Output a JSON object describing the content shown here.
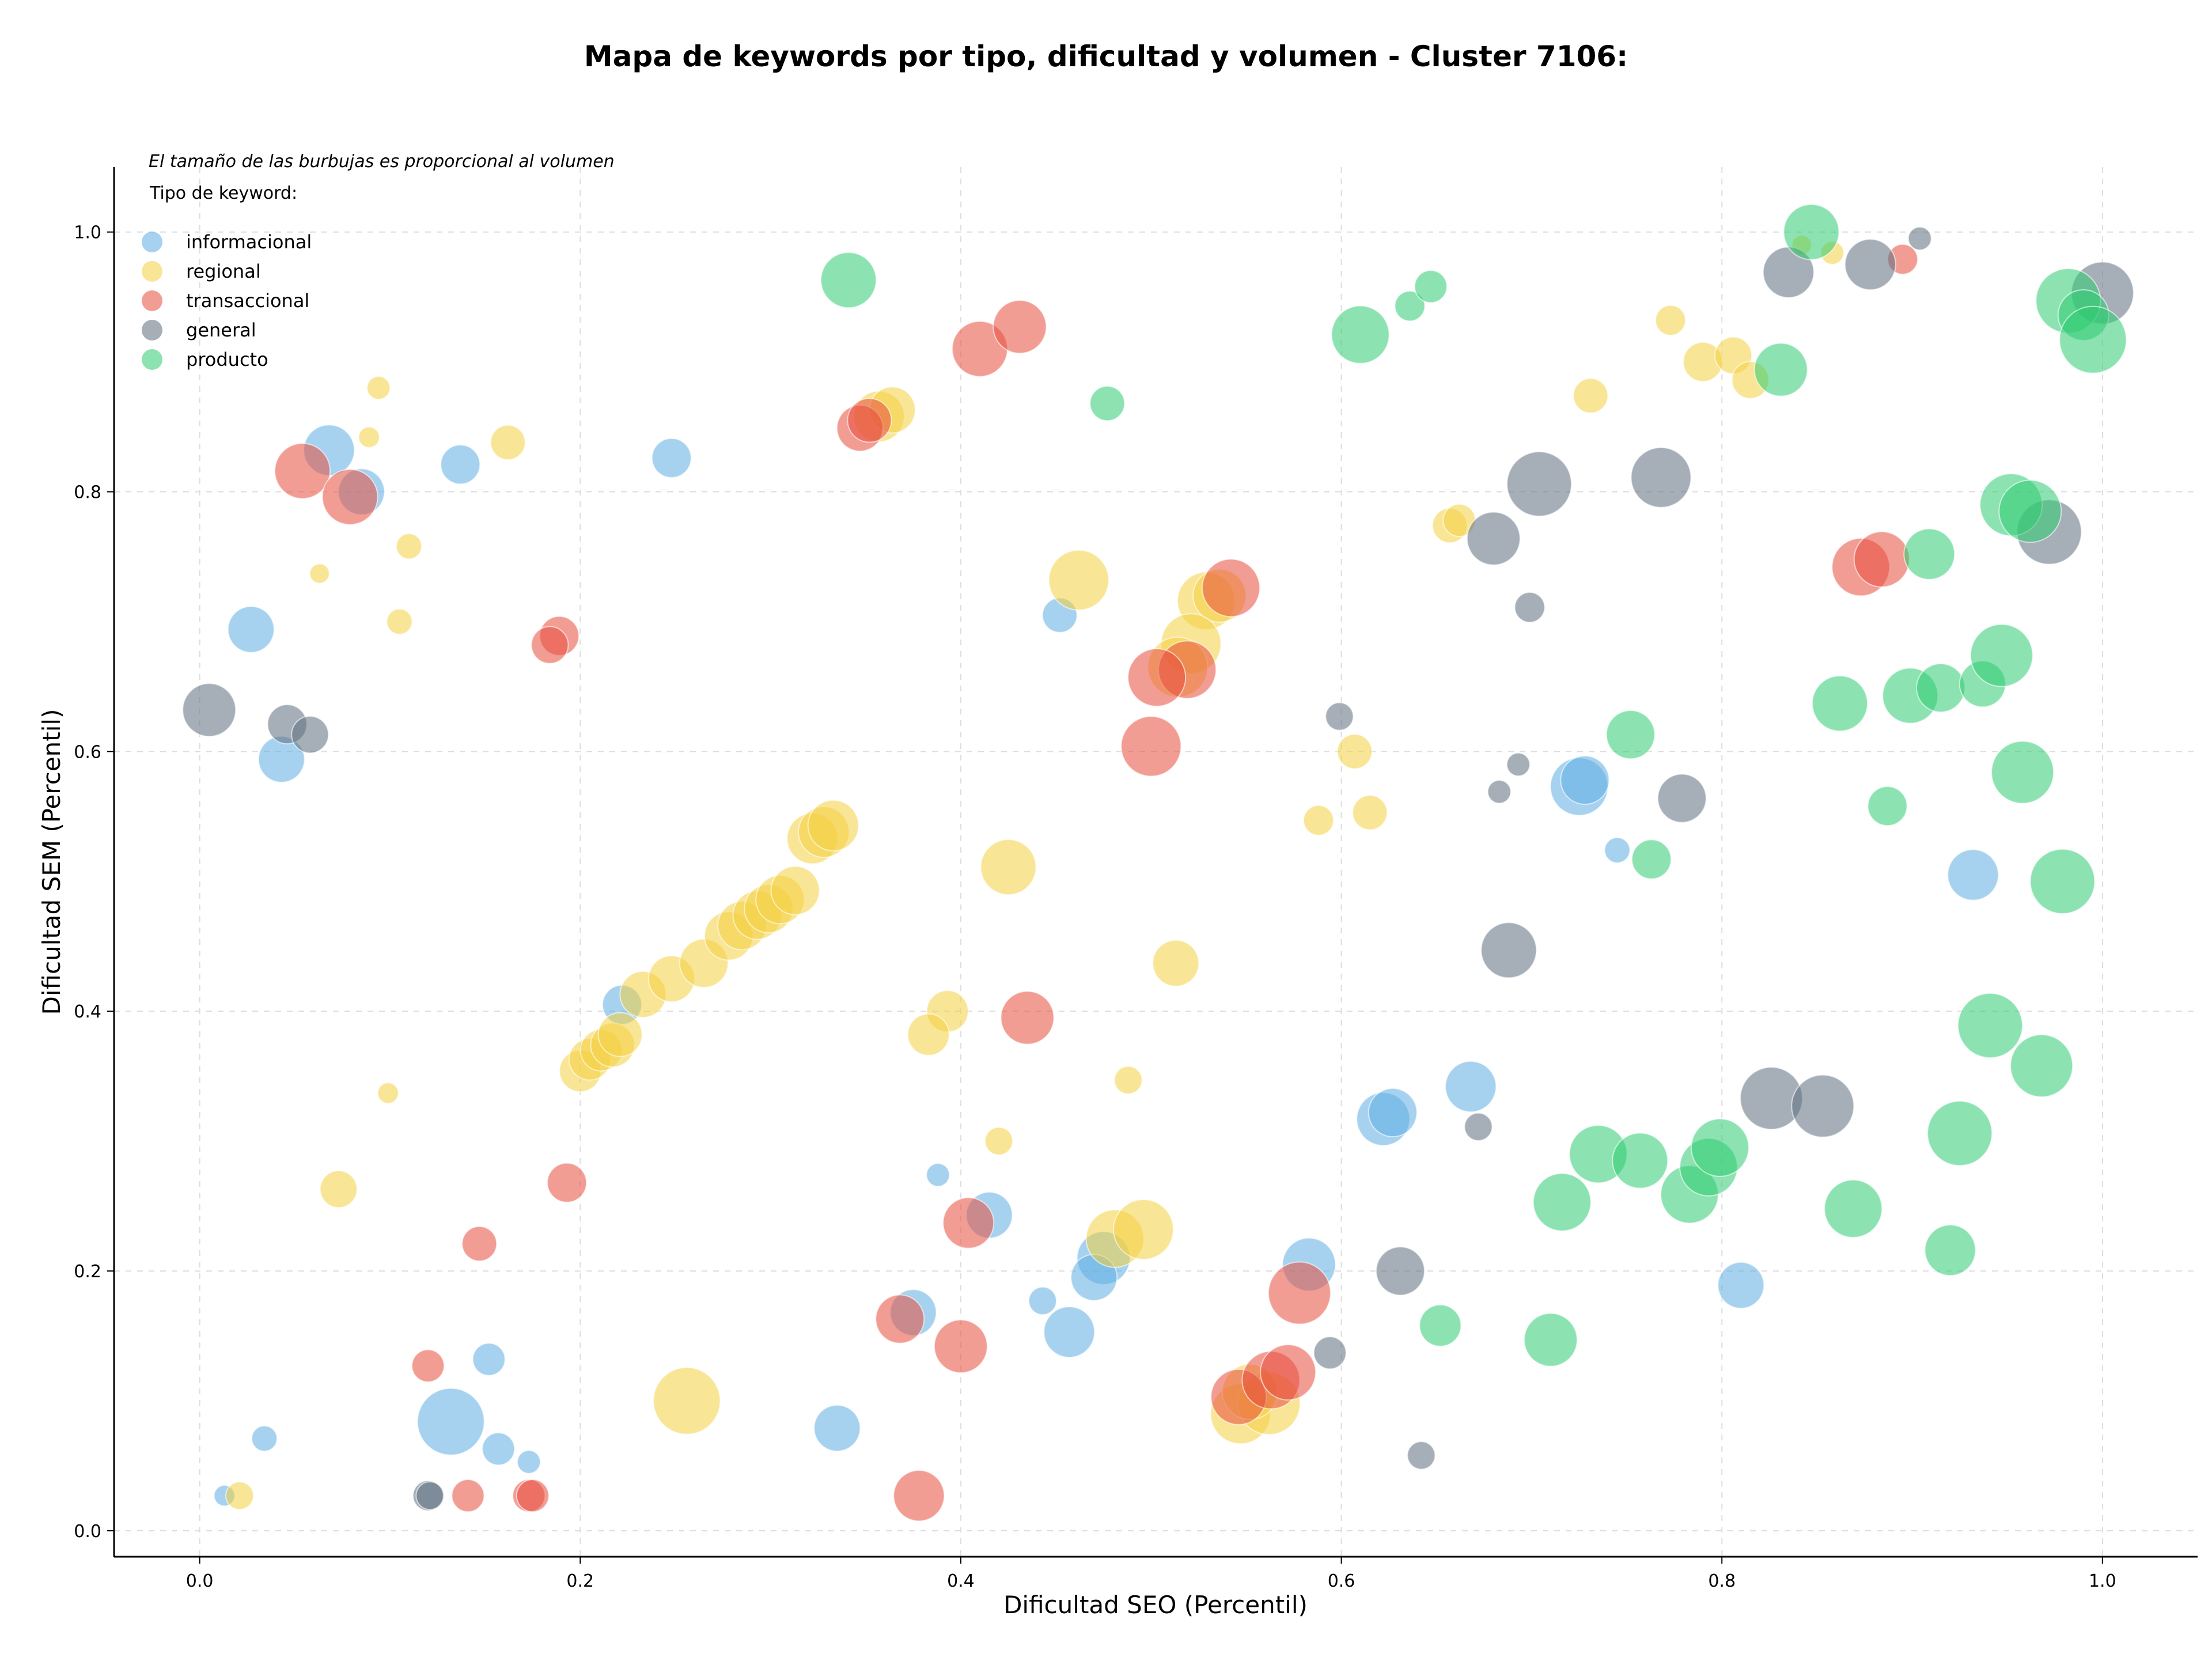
{
  "chart_data": {
    "type": "scatter",
    "title": "Mapa de keywords por tipo, dificultad y volumen - Cluster 7106:",
    "note": "El tamaño de las burbujas es proporcional al volumen",
    "xlabel": "Dificultad SEO (Percentil)",
    "ylabel": "Dificultad SEM (Percentil)",
    "xlim": [
      -0.045,
      1.05
    ],
    "ylim": [
      -0.02,
      1.05
    ],
    "xticks": [
      0.0,
      0.2,
      0.4,
      0.6,
      0.8,
      1.0
    ],
    "yticks": [
      0.0,
      0.2,
      0.4,
      0.6,
      0.8,
      1.0
    ],
    "tick_labels_x": [
      "0.0",
      "0.2",
      "0.4",
      "0.6",
      "0.8",
      "1.0"
    ],
    "tick_labels_y": [
      "0.0",
      "0.2",
      "0.4",
      "0.6",
      "0.8",
      "1.0"
    ],
    "grid": true,
    "legend": {
      "title": "Tipo de keyword:",
      "placement": "top-left"
    },
    "size_encoding": "volume",
    "series": [
      {
        "name": "informacional",
        "color": "#5dade2",
        "points": [
          [
            0.068,
            0.832,
            44
          ],
          [
            0.085,
            0.8,
            40
          ],
          [
            0.027,
            0.694,
            40
          ],
          [
            0.043,
            0.594,
            40
          ],
          [
            0.137,
            0.821,
            34
          ],
          [
            0.248,
            0.826,
            34
          ],
          [
            0.452,
            0.705,
            30
          ],
          [
            0.725,
            0.573,
            50
          ],
          [
            0.728,
            0.578,
            42
          ],
          [
            0.745,
            0.524,
            22
          ],
          [
            0.932,
            0.505,
            44
          ],
          [
            0.222,
            0.405,
            34
          ],
          [
            0.668,
            0.342,
            44
          ],
          [
            0.622,
            0.317,
            46
          ],
          [
            0.627,
            0.322,
            42
          ],
          [
            0.388,
            0.274,
            20
          ],
          [
            0.415,
            0.243,
            40
          ],
          [
            0.475,
            0.21,
            46
          ],
          [
            0.47,
            0.195,
            40
          ],
          [
            0.583,
            0.205,
            46
          ],
          [
            0.443,
            0.177,
            24
          ],
          [
            0.457,
            0.153,
            44
          ],
          [
            0.375,
            0.168,
            40
          ],
          [
            0.81,
            0.189,
            40
          ],
          [
            0.152,
            0.132,
            28
          ],
          [
            0.132,
            0.084,
            58
          ],
          [
            0.157,
            0.063,
            28
          ],
          [
            0.173,
            0.053,
            20
          ],
          [
            0.335,
            0.079,
            40
          ],
          [
            0.034,
            0.071,
            22
          ],
          [
            0.013,
            0.027,
            18
          ]
        ]
      },
      {
        "name": "regional",
        "color": "#f4d03f",
        "points": [
          [
            0.094,
            0.88,
            20
          ],
          [
            0.162,
            0.838,
            30
          ],
          [
            0.089,
            0.842,
            18
          ],
          [
            0.11,
            0.758,
            22
          ],
          [
            0.063,
            0.737,
            17
          ],
          [
            0.105,
            0.7,
            22
          ],
          [
            0.099,
            0.337,
            18
          ],
          [
            0.073,
            0.263,
            32
          ],
          [
            0.021,
            0.027,
            24
          ],
          [
            0.256,
            0.1,
            58
          ],
          [
            0.357,
            0.858,
            44
          ],
          [
            0.364,
            0.863,
            40
          ],
          [
            0.462,
            0.732,
            52
          ],
          [
            0.529,
            0.716,
            50
          ],
          [
            0.536,
            0.72,
            46
          ],
          [
            0.521,
            0.683,
            52
          ],
          [
            0.514,
            0.665,
            52
          ],
          [
            0.607,
            0.6,
            30
          ],
          [
            0.588,
            0.547,
            26
          ],
          [
            0.615,
            0.553,
            30
          ],
          [
            0.425,
            0.511,
            48
          ],
          [
            0.513,
            0.437,
            40
          ],
          [
            0.393,
            0.4,
            36
          ],
          [
            0.383,
            0.382,
            36
          ],
          [
            0.488,
            0.347,
            24
          ],
          [
            0.42,
            0.3,
            24
          ],
          [
            0.481,
            0.225,
            50
          ],
          [
            0.496,
            0.232,
            52
          ],
          [
            0.547,
            0.09,
            52
          ],
          [
            0.562,
            0.098,
            54
          ],
          [
            0.552,
            0.107,
            48
          ],
          [
            0.657,
            0.774,
            30
          ],
          [
            0.662,
            0.778,
            28
          ],
          [
            0.731,
            0.874,
            30
          ],
          [
            0.773,
            0.932,
            26
          ],
          [
            0.79,
            0.9,
            34
          ],
          [
            0.806,
            0.905,
            32
          ],
          [
            0.815,
            0.886,
            32
          ],
          [
            0.858,
            0.984,
            20
          ],
          [
            0.842,
            0.99,
            17
          ],
          [
            0.2,
            0.354,
            36
          ],
          [
            0.205,
            0.363,
            36
          ],
          [
            0.211,
            0.37,
            36
          ],
          [
            0.217,
            0.374,
            38
          ],
          [
            0.221,
            0.382,
            38
          ],
          [
            0.233,
            0.413,
            40
          ],
          [
            0.248,
            0.425,
            40
          ],
          [
            0.265,
            0.437,
            42
          ],
          [
            0.278,
            0.458,
            42
          ],
          [
            0.285,
            0.466,
            42
          ],
          [
            0.293,
            0.474,
            42
          ],
          [
            0.299,
            0.479,
            42
          ],
          [
            0.305,
            0.486,
            42
          ],
          [
            0.313,
            0.493,
            42
          ],
          [
            0.322,
            0.533,
            44
          ],
          [
            0.328,
            0.538,
            44
          ],
          [
            0.333,
            0.543,
            44
          ]
        ]
      },
      {
        "name": "transaccional",
        "color": "#e74c3c",
        "points": [
          [
            0.054,
            0.816,
            48
          ],
          [
            0.079,
            0.796,
            48
          ],
          [
            0.189,
            0.689,
            34
          ],
          [
            0.184,
            0.682,
            32
          ],
          [
            0.347,
            0.849,
            40
          ],
          [
            0.352,
            0.855,
            38
          ],
          [
            0.41,
            0.91,
            48
          ],
          [
            0.431,
            0.927,
            46
          ],
          [
            0.542,
            0.726,
            50
          ],
          [
            0.519,
            0.663,
            50
          ],
          [
            0.503,
            0.657,
            50
          ],
          [
            0.5,
            0.604,
            52
          ],
          [
            0.435,
            0.395,
            46
          ],
          [
            0.404,
            0.237,
            44
          ],
          [
            0.368,
            0.163,
            42
          ],
          [
            0.4,
            0.142,
            46
          ],
          [
            0.193,
            0.268,
            34
          ],
          [
            0.147,
            0.221,
            30
          ],
          [
            0.12,
            0.127,
            28
          ],
          [
            0.141,
            0.027,
            28
          ],
          [
            0.173,
            0.027,
            28
          ],
          [
            0.175,
            0.027,
            28
          ],
          [
            0.378,
            0.027,
            44
          ],
          [
            0.578,
            0.183,
            54
          ],
          [
            0.546,
            0.103,
            48
          ],
          [
            0.563,
            0.116,
            50
          ],
          [
            0.572,
            0.122,
            48
          ],
          [
            0.873,
            0.742,
            50
          ],
          [
            0.884,
            0.748,
            48
          ],
          [
            0.895,
            0.979,
            26
          ]
        ]
      },
      {
        "name": "general",
        "color": "#5d6d7e",
        "points": [
          [
            0.005,
            0.632,
            46
          ],
          [
            0.046,
            0.621,
            34
          ],
          [
            0.058,
            0.613,
            32
          ],
          [
            0.12,
            0.027,
            26
          ],
          [
            0.121,
            0.027,
            24
          ],
          [
            0.599,
            0.627,
            24
          ],
          [
            0.68,
            0.764,
            46
          ],
          [
            0.699,
            0.711,
            26
          ],
          [
            0.704,
            0.806,
            56
          ],
          [
            0.768,
            0.811,
            52
          ],
          [
            0.693,
            0.59,
            20
          ],
          [
            0.683,
            0.569,
            20
          ],
          [
            0.779,
            0.564,
            42
          ],
          [
            0.688,
            0.447,
            48
          ],
          [
            0.672,
            0.311,
            24
          ],
          [
            0.631,
            0.2,
            42
          ],
          [
            0.594,
            0.137,
            28
          ],
          [
            0.642,
            0.058,
            24
          ],
          [
            0.835,
            0.969,
            44
          ],
          [
            0.878,
            0.975,
            44
          ],
          [
            0.904,
            0.995,
            20
          ],
          [
            0.972,
            0.769,
            56
          ],
          [
            1.0,
            0.953,
            54
          ],
          [
            0.826,
            0.333,
            54
          ],
          [
            0.853,
            0.327,
            54
          ]
        ]
      },
      {
        "name": "producto",
        "color": "#2ecc71",
        "points": [
          [
            0.341,
            0.963,
            48
          ],
          [
            0.477,
            0.868,
            30
          ],
          [
            0.61,
            0.921,
            50
          ],
          [
            0.636,
            0.943,
            26
          ],
          [
            0.647,
            0.958,
            28
          ],
          [
            0.847,
            1.0,
            48
          ],
          [
            0.831,
            0.894,
            46
          ],
          [
            0.752,
            0.613,
            42
          ],
          [
            0.763,
            0.517,
            34
          ],
          [
            0.862,
            0.637,
            48
          ],
          [
            0.899,
            0.643,
            48
          ],
          [
            0.915,
            0.649,
            42
          ],
          [
            0.937,
            0.652,
            40
          ],
          [
            0.947,
            0.674,
            54
          ],
          [
            0.909,
            0.752,
            44
          ],
          [
            0.952,
            0.79,
            54
          ],
          [
            0.962,
            0.785,
            54
          ],
          [
            0.958,
            0.584,
            54
          ],
          [
            0.887,
            0.558,
            34
          ],
          [
            0.979,
            0.5,
            56
          ],
          [
            0.941,
            0.389,
            56
          ],
          [
            0.968,
            0.358,
            54
          ],
          [
            0.925,
            0.306,
            56
          ],
          [
            0.92,
            0.216,
            44
          ],
          [
            0.869,
            0.248,
            50
          ],
          [
            0.716,
            0.253,
            50
          ],
          [
            0.735,
            0.29,
            50
          ],
          [
            0.757,
            0.285,
            48
          ],
          [
            0.783,
            0.259,
            50
          ],
          [
            0.793,
            0.28,
            50
          ],
          [
            0.799,
            0.295,
            50
          ],
          [
            0.652,
            0.158,
            36
          ],
          [
            0.71,
            0.147,
            46
          ],
          [
            0.982,
            0.947,
            56
          ],
          [
            0.99,
            0.936,
            44
          ],
          [
            0.995,
            0.917,
            58
          ]
        ]
      }
    ]
  }
}
